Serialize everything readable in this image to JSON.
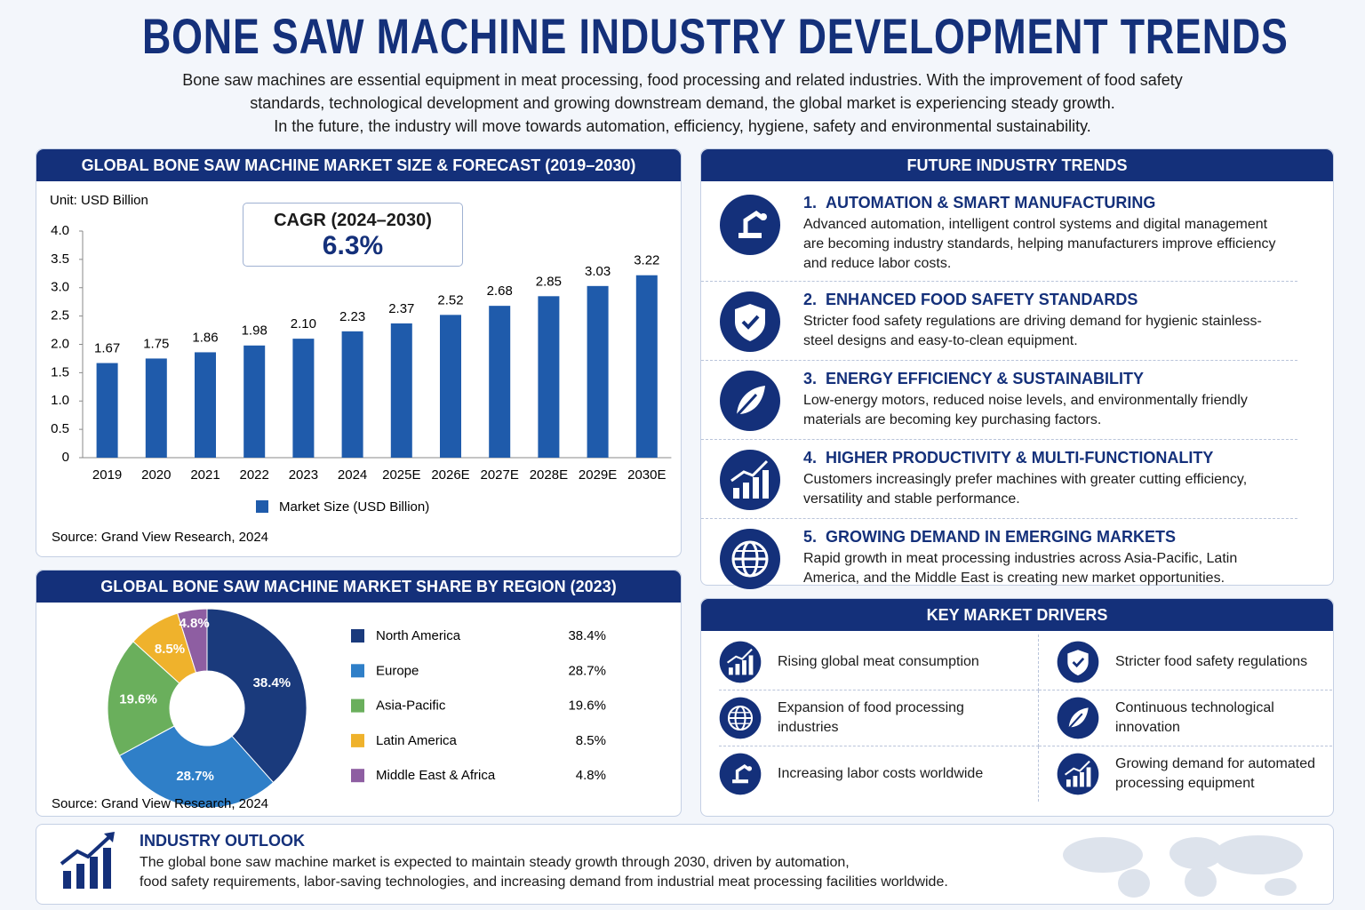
{
  "header": {
    "title": "BONE SAW MACHINE INDUSTRY DEVELOPMENT TRENDS",
    "subtitle": [
      "Bone saw machines are essential equipment in meat processing, food processing and related industries. With the improvement of food safety",
      "standards, technological development and growing downstream demand, the global market is experiencing steady growth.",
      "In the future, the industry will move towards automation, efficiency, hygiene, safety and environmental sustainability."
    ]
  },
  "chart_data": [
    {
      "type": "bar",
      "title": "GLOBAL BONE SAW MACHINE MARKET SIZE & FORECAST (2019–2030)",
      "unit_label": "Unit:  USD Billion",
      "annotation": {
        "label": "CAGR (2024–2030)",
        "text": "6.3%"
      },
      "categories": [
        "2019",
        "2020",
        "2021",
        "2022",
        "2023",
        "2024",
        "2025E",
        "2026E",
        "2027E",
        "2028E",
        "2029E",
        "2030E"
      ],
      "series": [
        {
          "name": "Market Size (USD Billion)",
          "color": "#1f5bab",
          "values": [
            1.67,
            1.75,
            1.86,
            1.98,
            2.1,
            2.23,
            2.37,
            2.52,
            2.68,
            2.85,
            3.03,
            3.22
          ],
          "value_labels": [
            "1.67",
            "1.75",
            "1.86",
            "1.98",
            "2.10",
            "2.23",
            "2.37",
            "2.52",
            "2.68",
            "2.85",
            "3.03",
            "3.22"
          ]
        }
      ],
      "ylim": [
        0,
        4
      ],
      "yticks": [
        0,
        0.5,
        {
          "value": 1,
          "label": "1.0"
        },
        1.5,
        {
          "value": 2,
          "label": "2.0"
        },
        2.5,
        {
          "value": 3,
          "label": "3.0"
        },
        3.5,
        {
          "value": 4,
          "label": "4.0"
        }
      ],
      "source": "Source:  Grand View Research,  2024"
    },
    {
      "type": "pie",
      "title": "GLOBAL BONE SAW MACHINE MARKET SHARE BY REGION (2023)",
      "categories": [
        "North America",
        "Europe",
        "Asia-Pacific",
        "Latin America",
        "Middle East & Africa"
      ],
      "values": [
        38.4,
        28.7,
        19.6,
        8.5,
        4.8
      ],
      "value_labels": [
        "38.4%",
        "28.7%",
        "19.6%",
        "8.5%",
        "4.8%"
      ],
      "colors": [
        "#1a3a7c",
        "#2f7fc8",
        "#6aaf5c",
        "#efb22c",
        "#8e5ea2"
      ],
      "source": "Source:  Grand View Research,  2024"
    }
  ],
  "trends": {
    "title": "FUTURE INDUSTRY TRENDS",
    "items": [
      {
        "number": "1.",
        "title": "AUTOMATION & SMART MANUFACTURING",
        "text": "Advanced automation, intelligent control systems and digital management are becoming industry standards, helping manufacturers improve efficiency and reduce labor costs."
      },
      {
        "number": "2.",
        "title": "ENHANCED FOOD SAFETY STANDARDS",
        "text": "Stricter food safety regulations are driving demand for hygienic stainless-steel designs and easy-to-clean equipment."
      },
      {
        "number": "3.",
        "title": "ENERGY EFFICIENCY & SUSTAINABILITY",
        "text": "Low-energy motors, reduced noise levels, and environmentally friendly materials are becoming key purchasing factors."
      },
      {
        "number": "4.",
        "title": "HIGHER PRODUCTIVITY & MULTI-FUNCTIONALITY",
        "text": "Customers increasingly prefer machines with greater cutting efficiency, versatility and stable performance."
      },
      {
        "number": "5.",
        "title": "GROWING DEMAND IN EMERGING MARKETS",
        "text": "Rapid growth in meat processing industries across Asia-Pacific, Latin America, and the Middle East is creating new market opportunities."
      }
    ]
  },
  "drivers": {
    "title": "KEY MARKET DRIVERS",
    "items": [
      "Rising global meat consumption",
      "Stricter food safety regulations",
      "Expansion of food processing industries",
      "Continuous technological innovation",
      "Increasing labor costs worldwide",
      "Growing demand for automated processing equipment"
    ]
  },
  "outlook": {
    "title": "INDUSTRY OUTLOOK",
    "lines": [
      "The global bone saw machine market is expected to maintain steady growth through 2030, driven by automation,",
      "food safety requirements, labor-saving technologies, and increasing demand from industrial meat processing facilities worldwide."
    ]
  }
}
